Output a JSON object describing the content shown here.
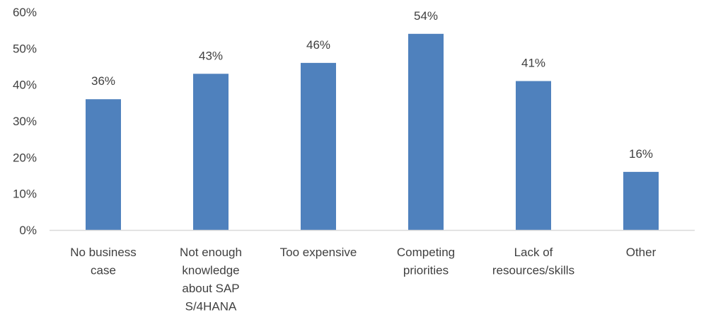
{
  "chart_data": {
    "type": "bar",
    "title": "",
    "xlabel": "",
    "ylabel": "",
    "categories": [
      [
        "No business",
        "case"
      ],
      [
        "Not enough",
        "knowledge",
        "about SAP",
        "S/4HANA"
      ],
      [
        "Too expensive"
      ],
      [
        "Competing",
        "priorities"
      ],
      [
        "Lack of",
        "resources/skills"
      ],
      [
        "Other"
      ]
    ],
    "values": [
      36,
      43,
      46,
      54,
      41,
      16
    ],
    "data_labels": [
      "36%",
      "43%",
      "46%",
      "54%",
      "41%",
      "16%"
    ],
    "ylim": [
      0,
      60
    ],
    "yticks": [
      0,
      10,
      20,
      30,
      40,
      50,
      60
    ],
    "ytick_labels": [
      "0%",
      "10%",
      "20%",
      "30%",
      "40%",
      "50%",
      "60%"
    ],
    "grid": false,
    "legend": "none",
    "bar_color": "#4F81BD",
    "axis_color": "#D9D9D9",
    "text_color": "#404040"
  }
}
